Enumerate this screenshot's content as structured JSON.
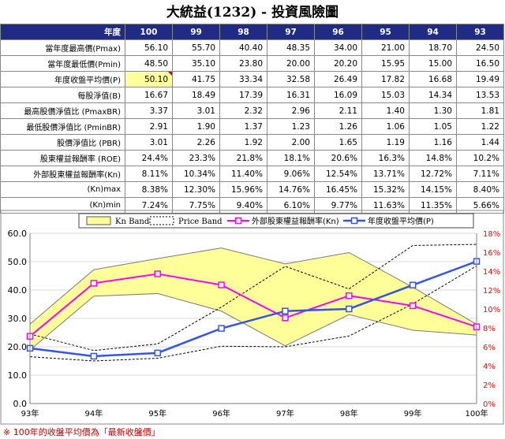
{
  "title": "大統益(1232) -  投資風險圖",
  "table": {
    "header_label": "年度",
    "years": [
      "100",
      "99",
      "98",
      "97",
      "96",
      "95",
      "94",
      "93"
    ],
    "rows": [
      {
        "label": "當年度最高價(Pmax)",
        "values": [
          "56.10",
          "55.70",
          "40.40",
          "48.35",
          "34.00",
          "21.00",
          "18.70",
          "24.50"
        ]
      },
      {
        "label": "當年度最低價(Pmin)",
        "values": [
          "48.50",
          "35.10",
          "23.80",
          "20.00",
          "20.20",
          "15.95",
          "15.00",
          "16.50"
        ]
      },
      {
        "label": "年度收盤平均價(P)",
        "values": [
          "50.10",
          "41.75",
          "33.34",
          "32.58",
          "26.49",
          "17.82",
          "16.68",
          "19.49"
        ]
      },
      {
        "label": "每股淨值(B)",
        "values": [
          "16.67",
          "18.49",
          "17.39",
          "16.31",
          "16.09",
          "15.03",
          "14.34",
          "13.53"
        ]
      },
      {
        "label": "最高股價淨值比 (PmaxBR)",
        "values": [
          "3.37",
          "3.01",
          "2.32",
          "2.96",
          "2.11",
          "1.40",
          "1.30",
          "1.81"
        ]
      },
      {
        "label": "最低股價淨值比 (PminBR)",
        "values": [
          "2.91",
          "1.90",
          "1.37",
          "1.23",
          "1.26",
          "1.06",
          "1.05",
          "1.22"
        ]
      },
      {
        "label": "股價淨值比 (PBR)",
        "values": [
          "3.01",
          "2.26",
          "1.92",
          "2.00",
          "1.65",
          "1.19",
          "1.16",
          "1.44"
        ]
      },
      {
        "label": "股東權益報酬率 (ROE)",
        "values": [
          "24.4%",
          "23.3%",
          "21.8%",
          "18.1%",
          "20.6%",
          "16.3%",
          "14.8%",
          "10.2%"
        ]
      },
      {
        "label": "外部股東權益報酬率(Kn)",
        "values": [
          "8.11%",
          "10.34%",
          "11.40%",
          "9.06%",
          "12.54%",
          "13.71%",
          "12.72%",
          "7.11%"
        ]
      },
      {
        "label": "(Kn)max",
        "values": [
          "8.38%",
          "12.30%",
          "15.96%",
          "14.76%",
          "16.45%",
          "15.32%",
          "14.15%",
          "8.40%"
        ]
      },
      {
        "label": "(Kn)min",
        "values": [
          "7.24%",
          "7.75%",
          "9.40%",
          "6.10%",
          "9.77%",
          "11.63%",
          "11.35%",
          "5.66%"
        ]
      }
    ]
  },
  "chart_data": {
    "type": "line",
    "categories": [
      "93年",
      "94年",
      "95年",
      "96年",
      "97年",
      "98年",
      "99年",
      "100年"
    ],
    "y_left": {
      "min": 0,
      "max": 60,
      "step": 10,
      "ticks": [
        "0.0",
        "10.0",
        "20.0",
        "30.0",
        "40.0",
        "50.0",
        "60.0"
      ]
    },
    "y_right": {
      "min": 0,
      "max": 18,
      "step": 2,
      "ticks": [
        "0%",
        "2%",
        "4%",
        "6%",
        "8%",
        "10%",
        "12%",
        "14%",
        "16%",
        "18%"
      ]
    },
    "legend": [
      "Kn Band",
      "Price Band",
      "外部股東權益報酬率(Kn)",
      "年度收盤平均價(P)"
    ],
    "legend_position": "top",
    "grid": true,
    "kn_band": {
      "upper": [
        8.4,
        14.15,
        15.32,
        16.45,
        14.76,
        15.96,
        12.3,
        8.38
      ],
      "lower": [
        5.66,
        11.35,
        11.63,
        9.77,
        6.1,
        9.4,
        7.75,
        7.24
      ]
    },
    "price_band": {
      "upper": [
        24.5,
        18.7,
        21.0,
        34.0,
        48.35,
        40.4,
        55.7,
        56.1
      ],
      "lower": [
        16.5,
        15.0,
        15.95,
        20.2,
        20.0,
        23.8,
        35.1,
        48.5
      ]
    },
    "series": [
      {
        "name": "外部股東權益報酬率(Kn)",
        "axis": "right",
        "values": [
          7.11,
          12.72,
          13.71,
          12.54,
          9.06,
          11.4,
          10.34,
          8.11
        ]
      },
      {
        "name": "年度收盤平均價(P)",
        "axis": "left",
        "values": [
          19.49,
          16.68,
          17.82,
          26.49,
          32.58,
          33.34,
          41.75,
          50.1
        ]
      }
    ],
    "colors": {
      "kn_band_fill": "#ffff99",
      "kn_line": "#ff00ff",
      "p_line": "#3355ee",
      "right_axis_text": "#ff0000",
      "band_edge": "#7a7a7a"
    }
  },
  "footnote": "※ 100年的收盤平均價為「最新收盤價」"
}
